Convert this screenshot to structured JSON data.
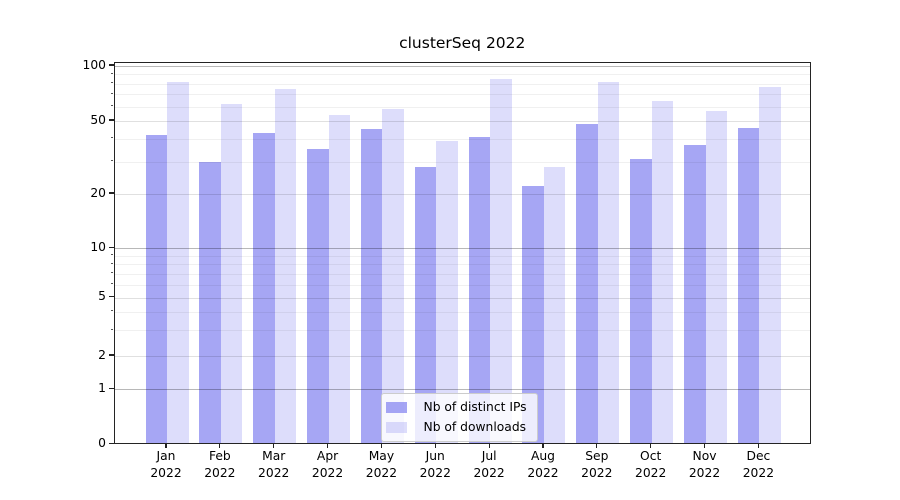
{
  "title": "clusterSeq 2022",
  "legend": {
    "items": [
      {
        "label": "Nb of distinct IPs",
        "color": "rgba(119,119,238,0.65)"
      },
      {
        "label": "Nb of downloads",
        "color": "rgba(119,119,238,0.25)"
      }
    ]
  },
  "x_axis": {
    "months": [
      {
        "month": "Jan",
        "year": "2022"
      },
      {
        "month": "Feb",
        "year": "2022"
      },
      {
        "month": "Mar",
        "year": "2022"
      },
      {
        "month": "Apr",
        "year": "2022"
      },
      {
        "month": "May",
        "year": "2022"
      },
      {
        "month": "Jun",
        "year": "2022"
      },
      {
        "month": "Jul",
        "year": "2022"
      },
      {
        "month": "Aug",
        "year": "2022"
      },
      {
        "month": "Sep",
        "year": "2022"
      },
      {
        "month": "Oct",
        "year": "2022"
      },
      {
        "month": "Nov",
        "year": "2022"
      },
      {
        "month": "Dec",
        "year": "2022"
      }
    ]
  },
  "y_axis": {
    "tick_labels": [
      "0",
      "1",
      "2",
      "5",
      "10",
      "20",
      "50",
      "100"
    ]
  },
  "chart_data": {
    "type": "bar",
    "title": "clusterSeq 2022",
    "categories": [
      "Jan 2022",
      "Feb 2022",
      "Mar 2022",
      "Apr 2022",
      "May 2022",
      "Jun 2022",
      "Jul 2022",
      "Aug 2022",
      "Sep 2022",
      "Oct 2022",
      "Nov 2022",
      "Dec 2022"
    ],
    "series": [
      {
        "name": "Nb of distinct IPs",
        "color": "rgba(119,119,238,0.65)",
        "values": [
          42,
          30,
          43,
          35,
          45,
          28,
          41,
          22,
          48,
          31,
          37,
          46
        ]
      },
      {
        "name": "Nb of downloads",
        "color": "rgba(119,119,238,0.25)",
        "values": [
          82,
          62,
          75,
          54,
          58,
          39,
          85,
          28,
          82,
          64,
          57,
          77
        ]
      }
    ],
    "yscale": "symlog",
    "yticks": [
      0,
      1,
      2,
      5,
      10,
      20,
      50,
      100
    ],
    "minor_yticks": [
      3,
      4,
      6,
      7,
      8,
      9,
      30,
      40,
      60,
      70,
      80,
      90
    ],
    "decade_gridlines": [
      1,
      10,
      100
    ],
    "ylim": [
      0,
      105
    ],
    "grid": true,
    "legend_position": "lower center"
  }
}
